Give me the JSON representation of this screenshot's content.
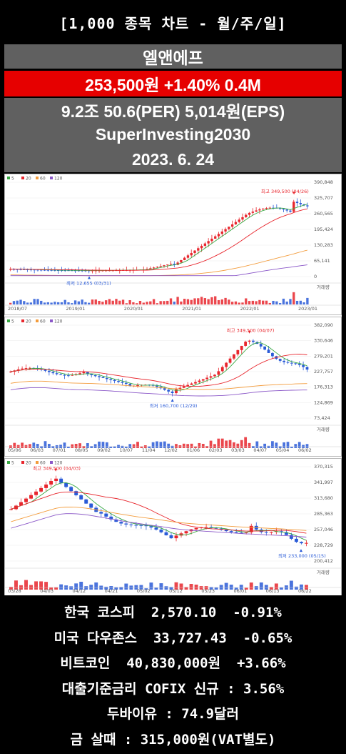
{
  "header": {
    "title": "[1,000 종목 차트 - 월/주/일]"
  },
  "stock": {
    "name": "엘앤에프",
    "price_line": "253,500원  +1.40%  0.4M",
    "metrics_line": "9.2조  50.6(PER)  5,014원(EPS)",
    "channel": "SuperInvesting2030",
    "date": "2023. 6. 24"
  },
  "colors": {
    "up": "#e8262d",
    "down": "#2a5bd7",
    "ma5": "#39a943",
    "ma20": "#e8262d",
    "ma60": "#f39c3c",
    "ma120": "#8b58c8",
    "price_bg": "#e60000",
    "box_bg": "#606060"
  },
  "chart_data": [
    {
      "type": "candlestick",
      "period": "monthly",
      "legend": [
        "5",
        "20",
        "60",
        "120"
      ],
      "volume_label": "거래량",
      "y_ticks": [
        "390,848",
        "325,707",
        "260,565",
        "195,424",
        "130,283",
        "65,141",
        "0"
      ],
      "ylim": [
        0,
        390848
      ],
      "x_ticks": [
        "2018/07",
        "2019/01",
        "2020/01",
        "2021/01",
        "2022/01",
        "2023/01"
      ],
      "annotations": {
        "high": "최고 349,500 (04/26)",
        "low": "최저 12,655 (03/31)"
      }
    },
    {
      "type": "candlestick",
      "period": "weekly",
      "legend": [
        "5",
        "20",
        "60",
        "120"
      ],
      "volume_label": "거래량",
      "y_ticks": [
        "382,090",
        "330,646",
        "279,201",
        "227,757",
        "176,313",
        "124,869",
        "73,424"
      ],
      "ylim": [
        73424,
        382090
      ],
      "x_ticks": [
        "05/06",
        "06/03",
        "07/01",
        "08/05",
        "09/02",
        "10/07",
        "11/04",
        "12/02",
        "01/06",
        "02/03",
        "03/03",
        "04/07",
        "05/04",
        "06/02"
      ],
      "annotations": {
        "high": "최고 349,500 (04/07)",
        "low": "최저 160,700 (12/29)"
      }
    },
    {
      "type": "candlestick",
      "period": "daily",
      "legend": [
        "5",
        "20",
        "60",
        "120"
      ],
      "volume_label": "거래량",
      "y_ticks": [
        "370,315",
        "341,997",
        "313,680",
        "285,363",
        "257,046",
        "228,729",
        "200,412"
      ],
      "ylim": [
        200412,
        370315
      ],
      "x_ticks": [
        "03/28",
        "04/03",
        "04/12",
        "04/21",
        "05/02",
        "05/12",
        "05/23",
        "06/01",
        "06/13",
        "06/22"
      ],
      "annotations": {
        "high": "최고 349,500 (04/03)",
        "low": "최저 233,000 (05/15)"
      }
    }
  ],
  "market": {
    "kospi": "한국 코스피  2,570.10  -0.91%",
    "dow": "미국 다우존스  33,727.43  -0.65%",
    "bitcoin": "비트코인  40,830,000원  +3.66%",
    "cofix": "대출기준금리 COFIX 신규 : 3.56%",
    "usdkrw": "두바이유 : 74.9달러",
    "gold": "금 살때 : 315,000원(VAT별도)"
  }
}
